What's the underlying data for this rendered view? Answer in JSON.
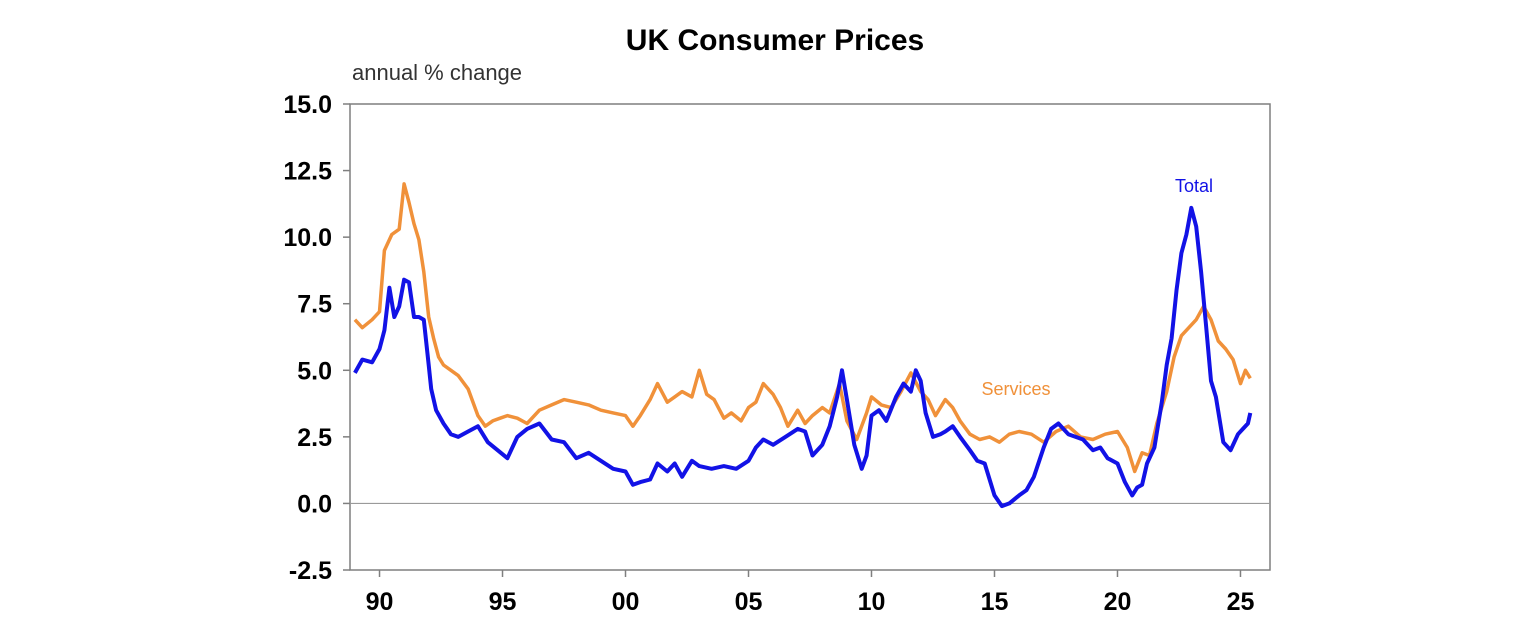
{
  "chart_data": {
    "type": "line",
    "title": "UK Consumer Prices",
    "ylabel": "annual % change",
    "xlabel": "",
    "xlim": [
      1988.8,
      2026.2
    ],
    "ylim": [
      -2.5,
      15.0
    ],
    "yticks": [
      15.0,
      12.5,
      10.0,
      7.5,
      5.0,
      2.5,
      0.0,
      -2.5
    ],
    "ytick_labels": [
      "15.0",
      "12.5",
      "10.0",
      "7.5",
      "5.0",
      "2.5",
      "0.0",
      "-2.5"
    ],
    "xticks": [
      1990,
      1995,
      2000,
      2005,
      2010,
      2015,
      2020,
      2025
    ],
    "xtick_labels": [
      "90",
      "95",
      "00",
      "05",
      "10",
      "15",
      "20",
      "25"
    ],
    "zero_line": true,
    "grid": false,
    "series": [
      {
        "name": "Services",
        "label": "Services",
        "color": "#F0913A",
        "x": [
          1989.0,
          1989.3,
          1989.7,
          1990.0,
          1990.2,
          1990.5,
          1990.8,
          1991.0,
          1991.2,
          1991.4,
          1991.6,
          1991.8,
          1992.0,
          1992.2,
          1992.4,
          1992.6,
          1992.9,
          1993.2,
          1993.6,
          1994.0,
          1994.3,
          1994.6,
          1994.9,
          1995.2,
          1995.6,
          1996.0,
          1996.5,
          1997.0,
          1997.5,
          1998.0,
          1998.5,
          1999.0,
          1999.5,
          2000.0,
          2000.3,
          2000.6,
          2001.0,
          2001.3,
          2001.7,
          2002.0,
          2002.3,
          2002.7,
          2003.0,
          2003.3,
          2003.6,
          2004.0,
          2004.3,
          2004.7,
          2005.0,
          2005.3,
          2005.6,
          2006.0,
          2006.3,
          2006.6,
          2007.0,
          2007.3,
          2007.6,
          2008.0,
          2008.3,
          2008.7,
          2009.0,
          2009.4,
          2009.8,
          2010.0,
          2010.4,
          2010.8,
          2011.2,
          2011.6,
          2012.0,
          2012.3,
          2012.6,
          2013.0,
          2013.3,
          2013.6,
          2014.0,
          2014.4,
          2014.8,
          2015.2,
          2015.6,
          2016.0,
          2016.5,
          2017.0,
          2017.5,
          2018.0,
          2018.5,
          2019.0,
          2019.5,
          2020.0,
          2020.4,
          2020.7,
          2021.0,
          2021.3,
          2021.6,
          2022.0,
          2022.3,
          2022.6,
          2022.9,
          2023.2,
          2023.5,
          2023.8,
          2024.1,
          2024.4,
          2024.7,
          2025.0,
          2025.2,
          2025.4
        ],
        "values": [
          6.9,
          6.6,
          6.9,
          7.2,
          9.5,
          10.1,
          10.3,
          12.0,
          11.3,
          10.5,
          9.9,
          8.7,
          7.0,
          6.2,
          5.5,
          5.2,
          5.0,
          4.8,
          4.3,
          3.3,
          2.9,
          3.1,
          3.2,
          3.3,
          3.2,
          3.0,
          3.5,
          3.7,
          3.9,
          3.8,
          3.7,
          3.5,
          3.4,
          3.3,
          2.9,
          3.3,
          3.9,
          4.5,
          3.8,
          4.0,
          4.2,
          4.0,
          5.0,
          4.1,
          3.9,
          3.2,
          3.4,
          3.1,
          3.6,
          3.8,
          4.5,
          4.1,
          3.6,
          2.9,
          3.5,
          3.0,
          3.3,
          3.6,
          3.4,
          4.5,
          3.1,
          2.4,
          3.4,
          4.0,
          3.7,
          3.6,
          4.2,
          4.9,
          4.2,
          3.9,
          3.3,
          3.9,
          3.6,
          3.1,
          2.6,
          2.4,
          2.5,
          2.3,
          2.6,
          2.7,
          2.6,
          2.3,
          2.7,
          2.9,
          2.5,
          2.4,
          2.6,
          2.7,
          2.1,
          1.2,
          1.9,
          1.8,
          3.0,
          4.2,
          5.5,
          6.3,
          6.6,
          6.9,
          7.4,
          6.9,
          6.1,
          5.8,
          5.4,
          4.5,
          5.0,
          4.7
        ]
      },
      {
        "name": "Total",
        "label": "Total",
        "color": "#1212E6",
        "x": [
          1989.0,
          1989.3,
          1989.7,
          1990.0,
          1990.2,
          1990.4,
          1990.6,
          1990.8,
          1991.0,
          1991.2,
          1991.4,
          1991.6,
          1991.8,
          1992.0,
          1992.1,
          1992.3,
          1992.6,
          1992.9,
          1993.2,
          1993.6,
          1994.0,
          1994.4,
          1994.8,
          1995.2,
          1995.6,
          1996.0,
          1996.5,
          1997.0,
          1997.5,
          1998.0,
          1998.5,
          1999.0,
          1999.5,
          2000.0,
          2000.3,
          2000.6,
          2001.0,
          2001.3,
          2001.7,
          2002.0,
          2002.3,
          2002.7,
          2003.0,
          2003.5,
          2004.0,
          2004.5,
          2005.0,
          2005.3,
          2005.6,
          2006.0,
          2006.5,
          2007.0,
          2007.3,
          2007.6,
          2008.0,
          2008.3,
          2008.6,
          2008.8,
          2009.0,
          2009.3,
          2009.6,
          2009.8,
          2010.0,
          2010.3,
          2010.6,
          2011.0,
          2011.3,
          2011.6,
          2011.8,
          2012.0,
          2012.2,
          2012.5,
          2012.8,
          2013.0,
          2013.3,
          2013.6,
          2014.0,
          2014.3,
          2014.6,
          2015.0,
          2015.3,
          2015.6,
          2016.0,
          2016.3,
          2016.6,
          2017.0,
          2017.3,
          2017.6,
          2018.0,
          2018.3,
          2018.6,
          2019.0,
          2019.3,
          2019.6,
          2020.0,
          2020.3,
          2020.6,
          2020.8,
          2021.0,
          2021.2,
          2021.5,
          2021.8,
          2022.0,
          2022.2,
          2022.4,
          2022.6,
          2022.8,
          2023.0,
          2023.2,
          2023.4,
          2023.6,
          2023.8,
          2024.0,
          2024.3,
          2024.6,
          2024.9,
          2025.1,
          2025.3,
          2025.4
        ],
        "values": [
          4.9,
          5.4,
          5.3,
          5.8,
          6.5,
          8.1,
          7.0,
          7.4,
          8.4,
          8.3,
          7.0,
          7.0,
          6.9,
          5.2,
          4.3,
          3.5,
          3.0,
          2.6,
          2.5,
          2.7,
          2.9,
          2.3,
          2.0,
          1.7,
          2.5,
          2.8,
          3.0,
          2.4,
          2.3,
          1.7,
          1.9,
          1.6,
          1.3,
          1.2,
          0.7,
          0.8,
          0.9,
          1.5,
          1.2,
          1.5,
          1.0,
          1.6,
          1.4,
          1.3,
          1.4,
          1.3,
          1.6,
          2.1,
          2.4,
          2.2,
          2.5,
          2.8,
          2.7,
          1.8,
          2.2,
          2.9,
          4.0,
          5.0,
          3.9,
          2.2,
          1.3,
          1.8,
          3.3,
          3.5,
          3.1,
          4.0,
          4.5,
          4.2,
          5.0,
          4.6,
          3.4,
          2.5,
          2.6,
          2.7,
          2.9,
          2.5,
          2.0,
          1.6,
          1.5,
          0.3,
          -0.1,
          0.0,
          0.3,
          0.5,
          1.0,
          2.1,
          2.8,
          3.0,
          2.6,
          2.5,
          2.4,
          2.0,
          2.1,
          1.7,
          1.5,
          0.8,
          0.3,
          0.6,
          0.7,
          1.5,
          2.1,
          3.8,
          5.2,
          6.2,
          8.0,
          9.4,
          10.1,
          11.1,
          10.4,
          8.7,
          6.7,
          4.6,
          4.0,
          2.3,
          2.0,
          2.6,
          2.8,
          3.0,
          3.4
        ]
      }
    ]
  }
}
